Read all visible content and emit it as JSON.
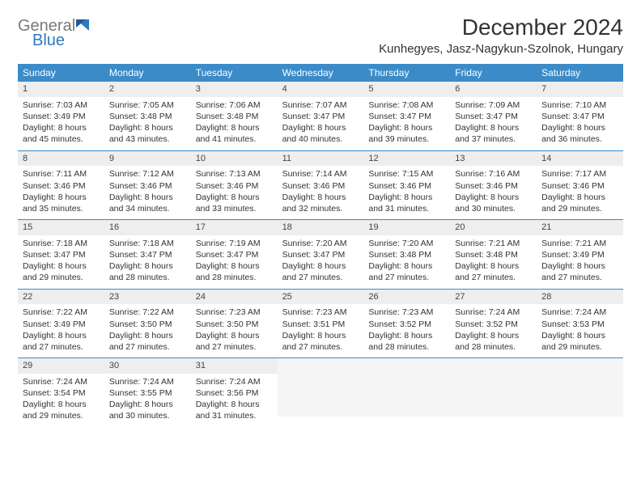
{
  "logo": {
    "text1": "General",
    "text2": "Blue"
  },
  "title": "December 2024",
  "location": "Kunhegyes, Jasz-Nagykun-Szolnok, Hungary",
  "colors": {
    "header_bar": "#3b8bc9",
    "daynum_bg": "#eeeeee",
    "week_border": "#3b8bc9",
    "logo_gray": "#7a7a7a",
    "logo_blue": "#2f79c2"
  },
  "dow": [
    "Sunday",
    "Monday",
    "Tuesday",
    "Wednesday",
    "Thursday",
    "Friday",
    "Saturday"
  ],
  "weeks": [
    [
      {
        "n": "1",
        "sr": "Sunrise: 7:03 AM",
        "ss": "Sunset: 3:49 PM",
        "d1": "Daylight: 8 hours",
        "d2": "and 45 minutes."
      },
      {
        "n": "2",
        "sr": "Sunrise: 7:05 AM",
        "ss": "Sunset: 3:48 PM",
        "d1": "Daylight: 8 hours",
        "d2": "and 43 minutes."
      },
      {
        "n": "3",
        "sr": "Sunrise: 7:06 AM",
        "ss": "Sunset: 3:48 PM",
        "d1": "Daylight: 8 hours",
        "d2": "and 41 minutes."
      },
      {
        "n": "4",
        "sr": "Sunrise: 7:07 AM",
        "ss": "Sunset: 3:47 PM",
        "d1": "Daylight: 8 hours",
        "d2": "and 40 minutes."
      },
      {
        "n": "5",
        "sr": "Sunrise: 7:08 AM",
        "ss": "Sunset: 3:47 PM",
        "d1": "Daylight: 8 hours",
        "d2": "and 39 minutes."
      },
      {
        "n": "6",
        "sr": "Sunrise: 7:09 AM",
        "ss": "Sunset: 3:47 PM",
        "d1": "Daylight: 8 hours",
        "d2": "and 37 minutes."
      },
      {
        "n": "7",
        "sr": "Sunrise: 7:10 AM",
        "ss": "Sunset: 3:47 PM",
        "d1": "Daylight: 8 hours",
        "d2": "and 36 minutes."
      }
    ],
    [
      {
        "n": "8",
        "sr": "Sunrise: 7:11 AM",
        "ss": "Sunset: 3:46 PM",
        "d1": "Daylight: 8 hours",
        "d2": "and 35 minutes."
      },
      {
        "n": "9",
        "sr": "Sunrise: 7:12 AM",
        "ss": "Sunset: 3:46 PM",
        "d1": "Daylight: 8 hours",
        "d2": "and 34 minutes."
      },
      {
        "n": "10",
        "sr": "Sunrise: 7:13 AM",
        "ss": "Sunset: 3:46 PM",
        "d1": "Daylight: 8 hours",
        "d2": "and 33 minutes."
      },
      {
        "n": "11",
        "sr": "Sunrise: 7:14 AM",
        "ss": "Sunset: 3:46 PM",
        "d1": "Daylight: 8 hours",
        "d2": "and 32 minutes."
      },
      {
        "n": "12",
        "sr": "Sunrise: 7:15 AM",
        "ss": "Sunset: 3:46 PM",
        "d1": "Daylight: 8 hours",
        "d2": "and 31 minutes."
      },
      {
        "n": "13",
        "sr": "Sunrise: 7:16 AM",
        "ss": "Sunset: 3:46 PM",
        "d1": "Daylight: 8 hours",
        "d2": "and 30 minutes."
      },
      {
        "n": "14",
        "sr": "Sunrise: 7:17 AM",
        "ss": "Sunset: 3:46 PM",
        "d1": "Daylight: 8 hours",
        "d2": "and 29 minutes."
      }
    ],
    [
      {
        "n": "15",
        "sr": "Sunrise: 7:18 AM",
        "ss": "Sunset: 3:47 PM",
        "d1": "Daylight: 8 hours",
        "d2": "and 29 minutes."
      },
      {
        "n": "16",
        "sr": "Sunrise: 7:18 AM",
        "ss": "Sunset: 3:47 PM",
        "d1": "Daylight: 8 hours",
        "d2": "and 28 minutes."
      },
      {
        "n": "17",
        "sr": "Sunrise: 7:19 AM",
        "ss": "Sunset: 3:47 PM",
        "d1": "Daylight: 8 hours",
        "d2": "and 28 minutes."
      },
      {
        "n": "18",
        "sr": "Sunrise: 7:20 AM",
        "ss": "Sunset: 3:47 PM",
        "d1": "Daylight: 8 hours",
        "d2": "and 27 minutes."
      },
      {
        "n": "19",
        "sr": "Sunrise: 7:20 AM",
        "ss": "Sunset: 3:48 PM",
        "d1": "Daylight: 8 hours",
        "d2": "and 27 minutes."
      },
      {
        "n": "20",
        "sr": "Sunrise: 7:21 AM",
        "ss": "Sunset: 3:48 PM",
        "d1": "Daylight: 8 hours",
        "d2": "and 27 minutes."
      },
      {
        "n": "21",
        "sr": "Sunrise: 7:21 AM",
        "ss": "Sunset: 3:49 PM",
        "d1": "Daylight: 8 hours",
        "d2": "and 27 minutes."
      }
    ],
    [
      {
        "n": "22",
        "sr": "Sunrise: 7:22 AM",
        "ss": "Sunset: 3:49 PM",
        "d1": "Daylight: 8 hours",
        "d2": "and 27 minutes."
      },
      {
        "n": "23",
        "sr": "Sunrise: 7:22 AM",
        "ss": "Sunset: 3:50 PM",
        "d1": "Daylight: 8 hours",
        "d2": "and 27 minutes."
      },
      {
        "n": "24",
        "sr": "Sunrise: 7:23 AM",
        "ss": "Sunset: 3:50 PM",
        "d1": "Daylight: 8 hours",
        "d2": "and 27 minutes."
      },
      {
        "n": "25",
        "sr": "Sunrise: 7:23 AM",
        "ss": "Sunset: 3:51 PM",
        "d1": "Daylight: 8 hours",
        "d2": "and 27 minutes."
      },
      {
        "n": "26",
        "sr": "Sunrise: 7:23 AM",
        "ss": "Sunset: 3:52 PM",
        "d1": "Daylight: 8 hours",
        "d2": "and 28 minutes."
      },
      {
        "n": "27",
        "sr": "Sunrise: 7:24 AM",
        "ss": "Sunset: 3:52 PM",
        "d1": "Daylight: 8 hours",
        "d2": "and 28 minutes."
      },
      {
        "n": "28",
        "sr": "Sunrise: 7:24 AM",
        "ss": "Sunset: 3:53 PM",
        "d1": "Daylight: 8 hours",
        "d2": "and 29 minutes."
      }
    ],
    [
      {
        "n": "29",
        "sr": "Sunrise: 7:24 AM",
        "ss": "Sunset: 3:54 PM",
        "d1": "Daylight: 8 hours",
        "d2": "and 29 minutes."
      },
      {
        "n": "30",
        "sr": "Sunrise: 7:24 AM",
        "ss": "Sunset: 3:55 PM",
        "d1": "Daylight: 8 hours",
        "d2": "and 30 minutes."
      },
      {
        "n": "31",
        "sr": "Sunrise: 7:24 AM",
        "ss": "Sunset: 3:56 PM",
        "d1": "Daylight: 8 hours",
        "d2": "and 31 minutes."
      },
      {
        "empty": true
      },
      {
        "empty": true
      },
      {
        "empty": true
      },
      {
        "empty": true
      }
    ]
  ]
}
